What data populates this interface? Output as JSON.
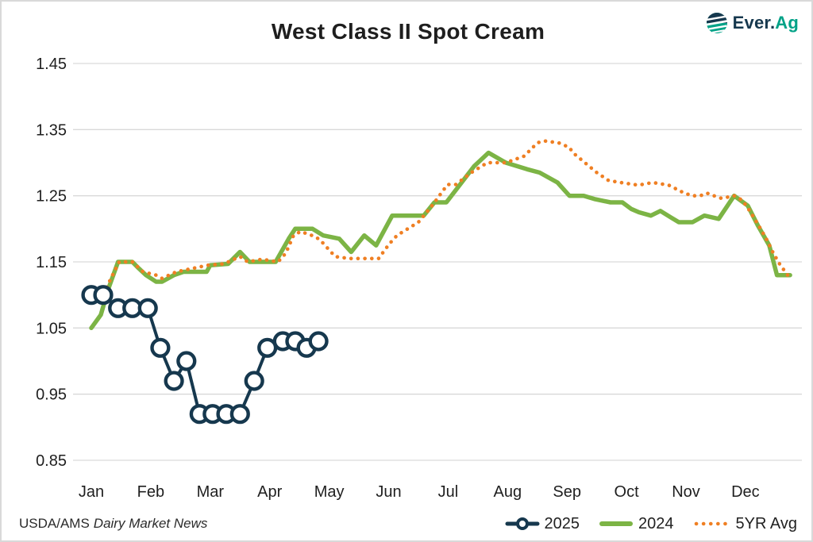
{
  "header": {
    "title": "West Class II Spot Cream",
    "logo": {
      "brand_prefix": "Ever.",
      "brand_suffix": "Ag",
      "icon_color_navy": "#16384E",
      "icon_color_teal": "#00A287"
    }
  },
  "footer": {
    "source_prefix": "USDA/AMS",
    "source_italic": "Dairy Market News"
  },
  "legend": [
    {
      "label": "2025",
      "color": "#16384E",
      "marker": "line-with-circle"
    },
    {
      "label": "2024",
      "color": "#7CB445",
      "marker": "solid-line"
    },
    {
      "label": "5YR Avg",
      "color": "#EF7F23",
      "marker": "dotted-line"
    }
  ],
  "chart_data": {
    "type": "line",
    "title": "West Class II Spot Cream",
    "xlabel": "",
    "ylabel": "",
    "x_categories": [
      "Jan",
      "Feb",
      "Mar",
      "Apr",
      "May",
      "Jun",
      "Jul",
      "Aug",
      "Sep",
      "Oct",
      "Nov",
      "Dec"
    ],
    "x_unit": "month index, 0 = Jan through 11 = Dec; fractional values are weekly observations",
    "y_axis": {
      "min": 0.85,
      "max": 1.45,
      "ticks": [
        1.45,
        1.35,
        1.25,
        1.15,
        1.05,
        0.95,
        0.85
      ]
    },
    "grid": "horizontal-only",
    "legend_position": "bottom-right",
    "style": {
      "gridline_color": "#D9D9D9",
      "text_color": "#1F1F1F",
      "background": "#FFFFFF"
    },
    "series": [
      {
        "name": "2025",
        "color": "#16384E",
        "line_style": "solid",
        "marker": "open-circle",
        "stroke_width": 4,
        "points": [
          [
            0.0,
            1.1
          ],
          [
            0.2,
            1.1
          ],
          [
            0.45,
            1.08
          ],
          [
            0.69,
            1.08
          ],
          [
            0.95,
            1.08
          ],
          [
            1.16,
            1.02
          ],
          [
            1.39,
            0.97
          ],
          [
            1.6,
            1.0
          ],
          [
            1.82,
            0.92
          ],
          [
            2.04,
            0.92
          ],
          [
            2.27,
            0.92
          ],
          [
            2.5,
            0.92
          ],
          [
            2.74,
            0.97
          ],
          [
            2.96,
            1.02
          ],
          [
            3.22,
            1.03
          ],
          [
            3.43,
            1.03
          ],
          [
            3.62,
            1.02
          ],
          [
            3.82,
            1.03
          ]
        ]
      },
      {
        "name": "2024",
        "color": "#7CB445",
        "line_style": "solid",
        "marker": "none",
        "stroke_width": 5.5,
        "points": [
          [
            0.0,
            1.05
          ],
          [
            0.16,
            1.07
          ],
          [
            0.29,
            1.11
          ],
          [
            0.45,
            1.15
          ],
          [
            0.69,
            1.15
          ],
          [
            0.8,
            1.14
          ],
          [
            0.92,
            1.13
          ],
          [
            1.09,
            1.12
          ],
          [
            1.19,
            1.12
          ],
          [
            1.39,
            1.13
          ],
          [
            1.55,
            1.135
          ],
          [
            1.94,
            1.135
          ],
          [
            2.0,
            1.145
          ],
          [
            2.3,
            1.147
          ],
          [
            2.5,
            1.165
          ],
          [
            2.66,
            1.15
          ],
          [
            3.1,
            1.15
          ],
          [
            3.32,
            1.185
          ],
          [
            3.43,
            1.2
          ],
          [
            3.72,
            1.2
          ],
          [
            3.9,
            1.19
          ],
          [
            4.17,
            1.185
          ],
          [
            4.37,
            1.165
          ],
          [
            4.59,
            1.19
          ],
          [
            4.79,
            1.175
          ],
          [
            5.06,
            1.22
          ],
          [
            5.59,
            1.22
          ],
          [
            5.77,
            1.24
          ],
          [
            5.97,
            1.24
          ],
          [
            6.44,
            1.295
          ],
          [
            6.68,
            1.315
          ],
          [
            6.97,
            1.3
          ],
          [
            7.33,
            1.29
          ],
          [
            7.54,
            1.285
          ],
          [
            7.84,
            1.27
          ],
          [
            8.04,
            1.25
          ],
          [
            8.28,
            1.25
          ],
          [
            8.46,
            1.245
          ],
          [
            8.73,
            1.24
          ],
          [
            8.93,
            1.24
          ],
          [
            9.08,
            1.23
          ],
          [
            9.21,
            1.225
          ],
          [
            9.41,
            1.22
          ],
          [
            9.57,
            1.227
          ],
          [
            9.75,
            1.217
          ],
          [
            9.88,
            1.21
          ],
          [
            10.11,
            1.21
          ],
          [
            10.31,
            1.22
          ],
          [
            10.55,
            1.215
          ],
          [
            10.81,
            1.25
          ],
          [
            11.04,
            1.235
          ],
          [
            11.21,
            1.205
          ],
          [
            11.4,
            1.175
          ],
          [
            11.53,
            1.13
          ],
          [
            11.75,
            1.13
          ]
        ]
      },
      {
        "name": "5YR Avg",
        "color": "#EF7F23",
        "line_style": "dotted",
        "marker": "none",
        "stroke_width": 4.6,
        "points": [
          [
            0.03,
            1.11
          ],
          [
            0.2,
            1.1
          ],
          [
            0.33,
            1.125
          ],
          [
            0.47,
            1.15
          ],
          [
            0.69,
            1.15
          ],
          [
            0.87,
            1.135
          ],
          [
            1.09,
            1.13
          ],
          [
            1.19,
            1.125
          ],
          [
            1.43,
            1.135
          ],
          [
            1.7,
            1.14
          ],
          [
            1.96,
            1.145
          ],
          [
            2.23,
            1.147
          ],
          [
            2.5,
            1.158
          ],
          [
            2.63,
            1.15
          ],
          [
            2.87,
            1.154
          ],
          [
            3.14,
            1.15
          ],
          [
            3.27,
            1.163
          ],
          [
            3.4,
            1.19
          ],
          [
            3.52,
            1.196
          ],
          [
            3.77,
            1.188
          ],
          [
            3.86,
            1.182
          ],
          [
            4.1,
            1.158
          ],
          [
            4.34,
            1.155
          ],
          [
            4.83,
            1.155
          ],
          [
            5.01,
            1.177
          ],
          [
            5.14,
            1.19
          ],
          [
            5.5,
            1.21
          ],
          [
            5.73,
            1.235
          ],
          [
            5.99,
            1.267
          ],
          [
            6.13,
            1.267
          ],
          [
            6.39,
            1.285
          ],
          [
            6.66,
            1.3
          ],
          [
            6.97,
            1.3
          ],
          [
            7.28,
            1.31
          ],
          [
            7.5,
            1.33
          ],
          [
            7.61,
            1.333
          ],
          [
            7.86,
            1.33
          ],
          [
            8.04,
            1.323
          ],
          [
            8.1,
            1.315
          ],
          [
            8.3,
            1.3
          ],
          [
            8.5,
            1.285
          ],
          [
            8.7,
            1.273
          ],
          [
            8.9,
            1.27
          ],
          [
            9.2,
            1.266
          ],
          [
            9.44,
            1.27
          ],
          [
            9.71,
            1.266
          ],
          [
            9.84,
            1.26
          ],
          [
            9.97,
            1.254
          ],
          [
            10.11,
            1.25
          ],
          [
            10.24,
            1.25
          ],
          [
            10.35,
            1.254
          ],
          [
            10.47,
            1.25
          ],
          [
            10.6,
            1.246
          ],
          [
            10.81,
            1.25
          ],
          [
            10.95,
            1.243
          ],
          [
            11.08,
            1.226
          ],
          [
            11.21,
            1.207
          ],
          [
            11.35,
            1.185
          ],
          [
            11.47,
            1.163
          ],
          [
            11.58,
            1.146
          ],
          [
            11.71,
            1.13
          ]
        ]
      }
    ]
  }
}
